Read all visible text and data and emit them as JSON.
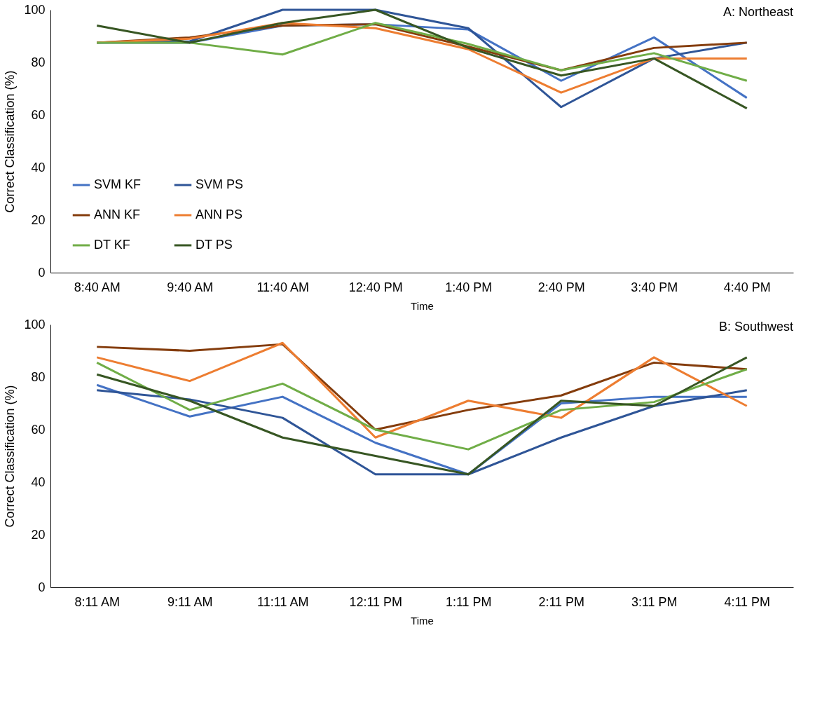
{
  "chart_data": [
    {
      "type": "line",
      "title": "A: Northeast",
      "xlabel": "Time",
      "ylabel": "Correct Classification (%)",
      "categories": [
        "8:40 AM",
        "9:40 AM",
        "11:40 AM",
        "12:40 PM",
        "1:40 PM",
        "2:40 PM",
        "3:40 PM",
        "4:40 PM"
      ],
      "series": [
        {
          "name": "SVM KF",
          "color": "#4472c4",
          "values": [
            87.5,
            87.5,
            94,
            94.5,
            92.5,
            73,
            89.5,
            66.5
          ]
        },
        {
          "name": "SVM PS",
          "color": "#2f5597",
          "values": [
            87.5,
            88,
            100,
            100,
            93,
            63,
            81.5,
            87.5
          ]
        },
        {
          "name": "ANN KF",
          "color": "#843c0c",
          "values": [
            87.5,
            89.5,
            94,
            94.5,
            86,
            77,
            85.5,
            87.5
          ]
        },
        {
          "name": "ANN PS",
          "color": "#ed7d31",
          "values": [
            87.5,
            89,
            95,
            93,
            85,
            68.5,
            81.5,
            81.5
          ]
        },
        {
          "name": "DT KF",
          "color": "#70ad47",
          "values": [
            87.5,
            87.5,
            83,
            95,
            87,
            77,
            83.5,
            73
          ]
        },
        {
          "name": "DT PS",
          "color": "#375623",
          "values": [
            94,
            87.5,
            95,
            100,
            85.5,
            75,
            81.5,
            62.5
          ]
        }
      ],
      "ylim": [
        0,
        100
      ],
      "yticks": [
        0,
        20,
        40,
        60,
        80,
        100
      ],
      "grid": false,
      "legend": "bottom left"
    },
    {
      "type": "line",
      "title": "B: Southwest",
      "xlabel": "Time",
      "ylabel": "Correct Classification (%)",
      "categories": [
        "8:11 AM",
        "9:11 AM",
        "11:11 AM",
        "12:11 PM",
        "1:11 PM",
        "2:11 PM",
        "3:11 PM",
        "4:11 PM"
      ],
      "series": [
        {
          "color": "#4472c4",
          "values": [
            77,
            65,
            72.5,
            55,
            43,
            70,
            72.5,
            72.5
          ]
        },
        {
          "color": "#2f5597",
          "values": [
            75,
            71.5,
            64.5,
            43,
            43,
            57,
            69,
            75
          ]
        },
        {
          "color": "#843c0c",
          "values": [
            91.5,
            90,
            92.5,
            60,
            67.5,
            73,
            85.5,
            83
          ]
        },
        {
          "color": "#ed7d31",
          "values": [
            87.5,
            78.5,
            93,
            57,
            71,
            64.5,
            87.5,
            69
          ]
        },
        {
          "color": "#70ad47",
          "values": [
            85.5,
            67.5,
            77.5,
            60,
            52.5,
            67.5,
            70.5,
            83
          ]
        },
        {
          "color": "#375623",
          "values": [
            81,
            71,
            57,
            50,
            43,
            71,
            69,
            87.5
          ]
        }
      ],
      "ylim": [
        0,
        100
      ],
      "yticks": [
        0,
        20,
        40,
        60,
        80,
        100
      ],
      "grid": false,
      "legend": false
    }
  ]
}
